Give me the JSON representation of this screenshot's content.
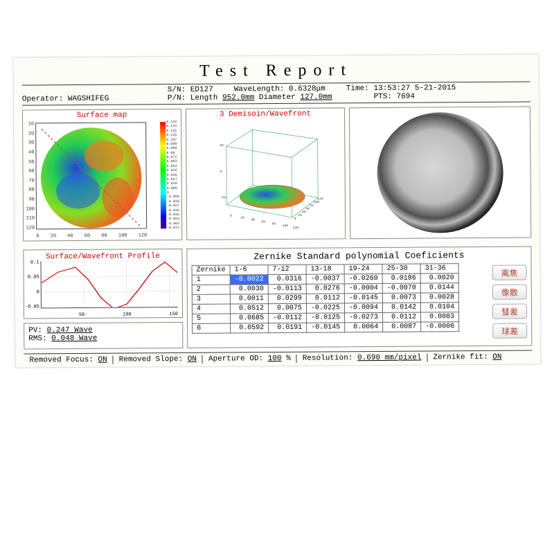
{
  "title": "Test Report",
  "header": {
    "operator_label": "Operator:",
    "operator": "WAGSHIFEG",
    "sn_label": "S/N:",
    "sn": "ED127",
    "pn_label": "P/N:",
    "pn_length_label": "Length",
    "pn_length": "952.0mm",
    "pn_diameter_label": "Diameter",
    "pn_diameter": "127.0mm",
    "wavelength_label": "WaveLength:",
    "wavelength": "0.6328μm",
    "time_label": "Time:",
    "time": "13:53:27 5-21-2015",
    "pts_label": "PTS:",
    "pts": "7694"
  },
  "panels": {
    "surface_map": {
      "title": "Surface map",
      "x_ticks": [
        "0",
        "20",
        "40",
        "60",
        "80",
        "100",
        "120"
      ],
      "y_ticks": [
        "10",
        "20",
        "30",
        "40",
        "50",
        "60",
        "70",
        "80",
        "90",
        "100",
        "110",
        "120"
      ],
      "colorbar_labels": [
        "0.143",
        "0.134",
        "0.125",
        "0.116",
        "0.107",
        "0.098",
        "0.089",
        "0.08",
        "0.072",
        "0.063",
        "0.054",
        "0.045",
        "0.036",
        "0.027",
        "0.018",
        "0.009",
        "0",
        "-0.009",
        "-0.018",
        "-0.027",
        "-0.036",
        "-0.045",
        "-0.054",
        "-0.063",
        "-0.072"
      ],
      "gradient": [
        "#ff0000",
        "#ff7f00",
        "#ffff00",
        "#7fff00",
        "#00ff00",
        "#00ff7f",
        "#00ffff",
        "#007fff",
        "#0000ff",
        "#4b0082"
      ],
      "diag_color": "#cc4444"
    },
    "wavefront3d": {
      "title": "3 Demisoin/Wavefront",
      "x_ticks": [
        "0",
        "20",
        "40",
        "60",
        "80",
        "100",
        "120"
      ],
      "y_ticks": [
        "0",
        "20",
        "40",
        "60",
        "80",
        "100",
        "120"
      ],
      "z_ticks": [
        "-50",
        "0",
        "50"
      ]
    },
    "interferogram": {
      "bg": "#444444",
      "circle_fill_light": "#c8c8c8",
      "circle_fill_dark": "#606060"
    },
    "profile": {
      "title": "Surface/Wavefront Profile",
      "y_ticks": [
        "0.1",
        "0.05",
        "0",
        "-0.05"
      ],
      "x_ticks": [
        "",
        "50",
        "100",
        "150"
      ],
      "line_color": "#cc0000",
      "points": [
        [
          0,
          0.03
        ],
        [
          20,
          0.065
        ],
        [
          40,
          0.08
        ],
        [
          55,
          0.04
        ],
        [
          70,
          -0.02
        ],
        [
          85,
          -0.055
        ],
        [
          100,
          -0.04
        ],
        [
          115,
          0.01
        ],
        [
          130,
          0.065
        ],
        [
          145,
          0.095
        ],
        [
          160,
          0.06
        ]
      ]
    }
  },
  "stats": {
    "pv_label": "PV:",
    "pv_value": "0.247 Wave",
    "rms_label": "RMS:",
    "rms_value": "0.048 Wave"
  },
  "zernike": {
    "title": "Zernike Standard polynomial Coeficients",
    "headers": [
      "Zernike",
      "1-6",
      "7-12",
      "13-18",
      "19-24",
      "25-30",
      "31-36"
    ],
    "rows": [
      [
        "1",
        "-0.0022",
        "0.0316",
        "-0.0037",
        "-0.0260",
        "0.0186",
        "0.0020"
      ],
      [
        "2",
        "0.0030",
        "-0.0113",
        "0.0276",
        "-0.0004",
        "-0.0070",
        "0.0144"
      ],
      [
        "3",
        "0.0011",
        "0.0299",
        "0.0112",
        "-0.0145",
        "0.0073",
        "0.0028"
      ],
      [
        "4",
        "0.0512",
        "0.0075",
        "-0.0225",
        "-0.0094",
        "0.0142",
        "0.0104"
      ],
      [
        "5",
        "0.0685",
        "-0.0112",
        "-0.0125",
        "-0.0273",
        "0.0112",
        "0.0003"
      ],
      [
        "6",
        "0.0592",
        "0.0191",
        "-0.0145",
        "0.0064",
        "0.0087",
        "-0.0006"
      ]
    ],
    "selected_row": 0,
    "selected_col": 1,
    "buttons": [
      "离焦",
      "像散",
      "彗差",
      "球差"
    ]
  },
  "footer": {
    "removed_focus_label": "Removed Focus:",
    "removed_focus": "ON",
    "removed_slope_label": "Removed Slope:",
    "removed_slope": "ON",
    "aperture_label": "Aperture OD:",
    "aperture": "100",
    "aperture_unit": "%",
    "resolution_label": "Resolution:",
    "resolution": "0.690 mm/pixel",
    "zfit_label": "Zernike fit:",
    "zfit": "ON"
  },
  "style": {
    "accent_red": "#cc0000",
    "button_text": "#b04030"
  }
}
